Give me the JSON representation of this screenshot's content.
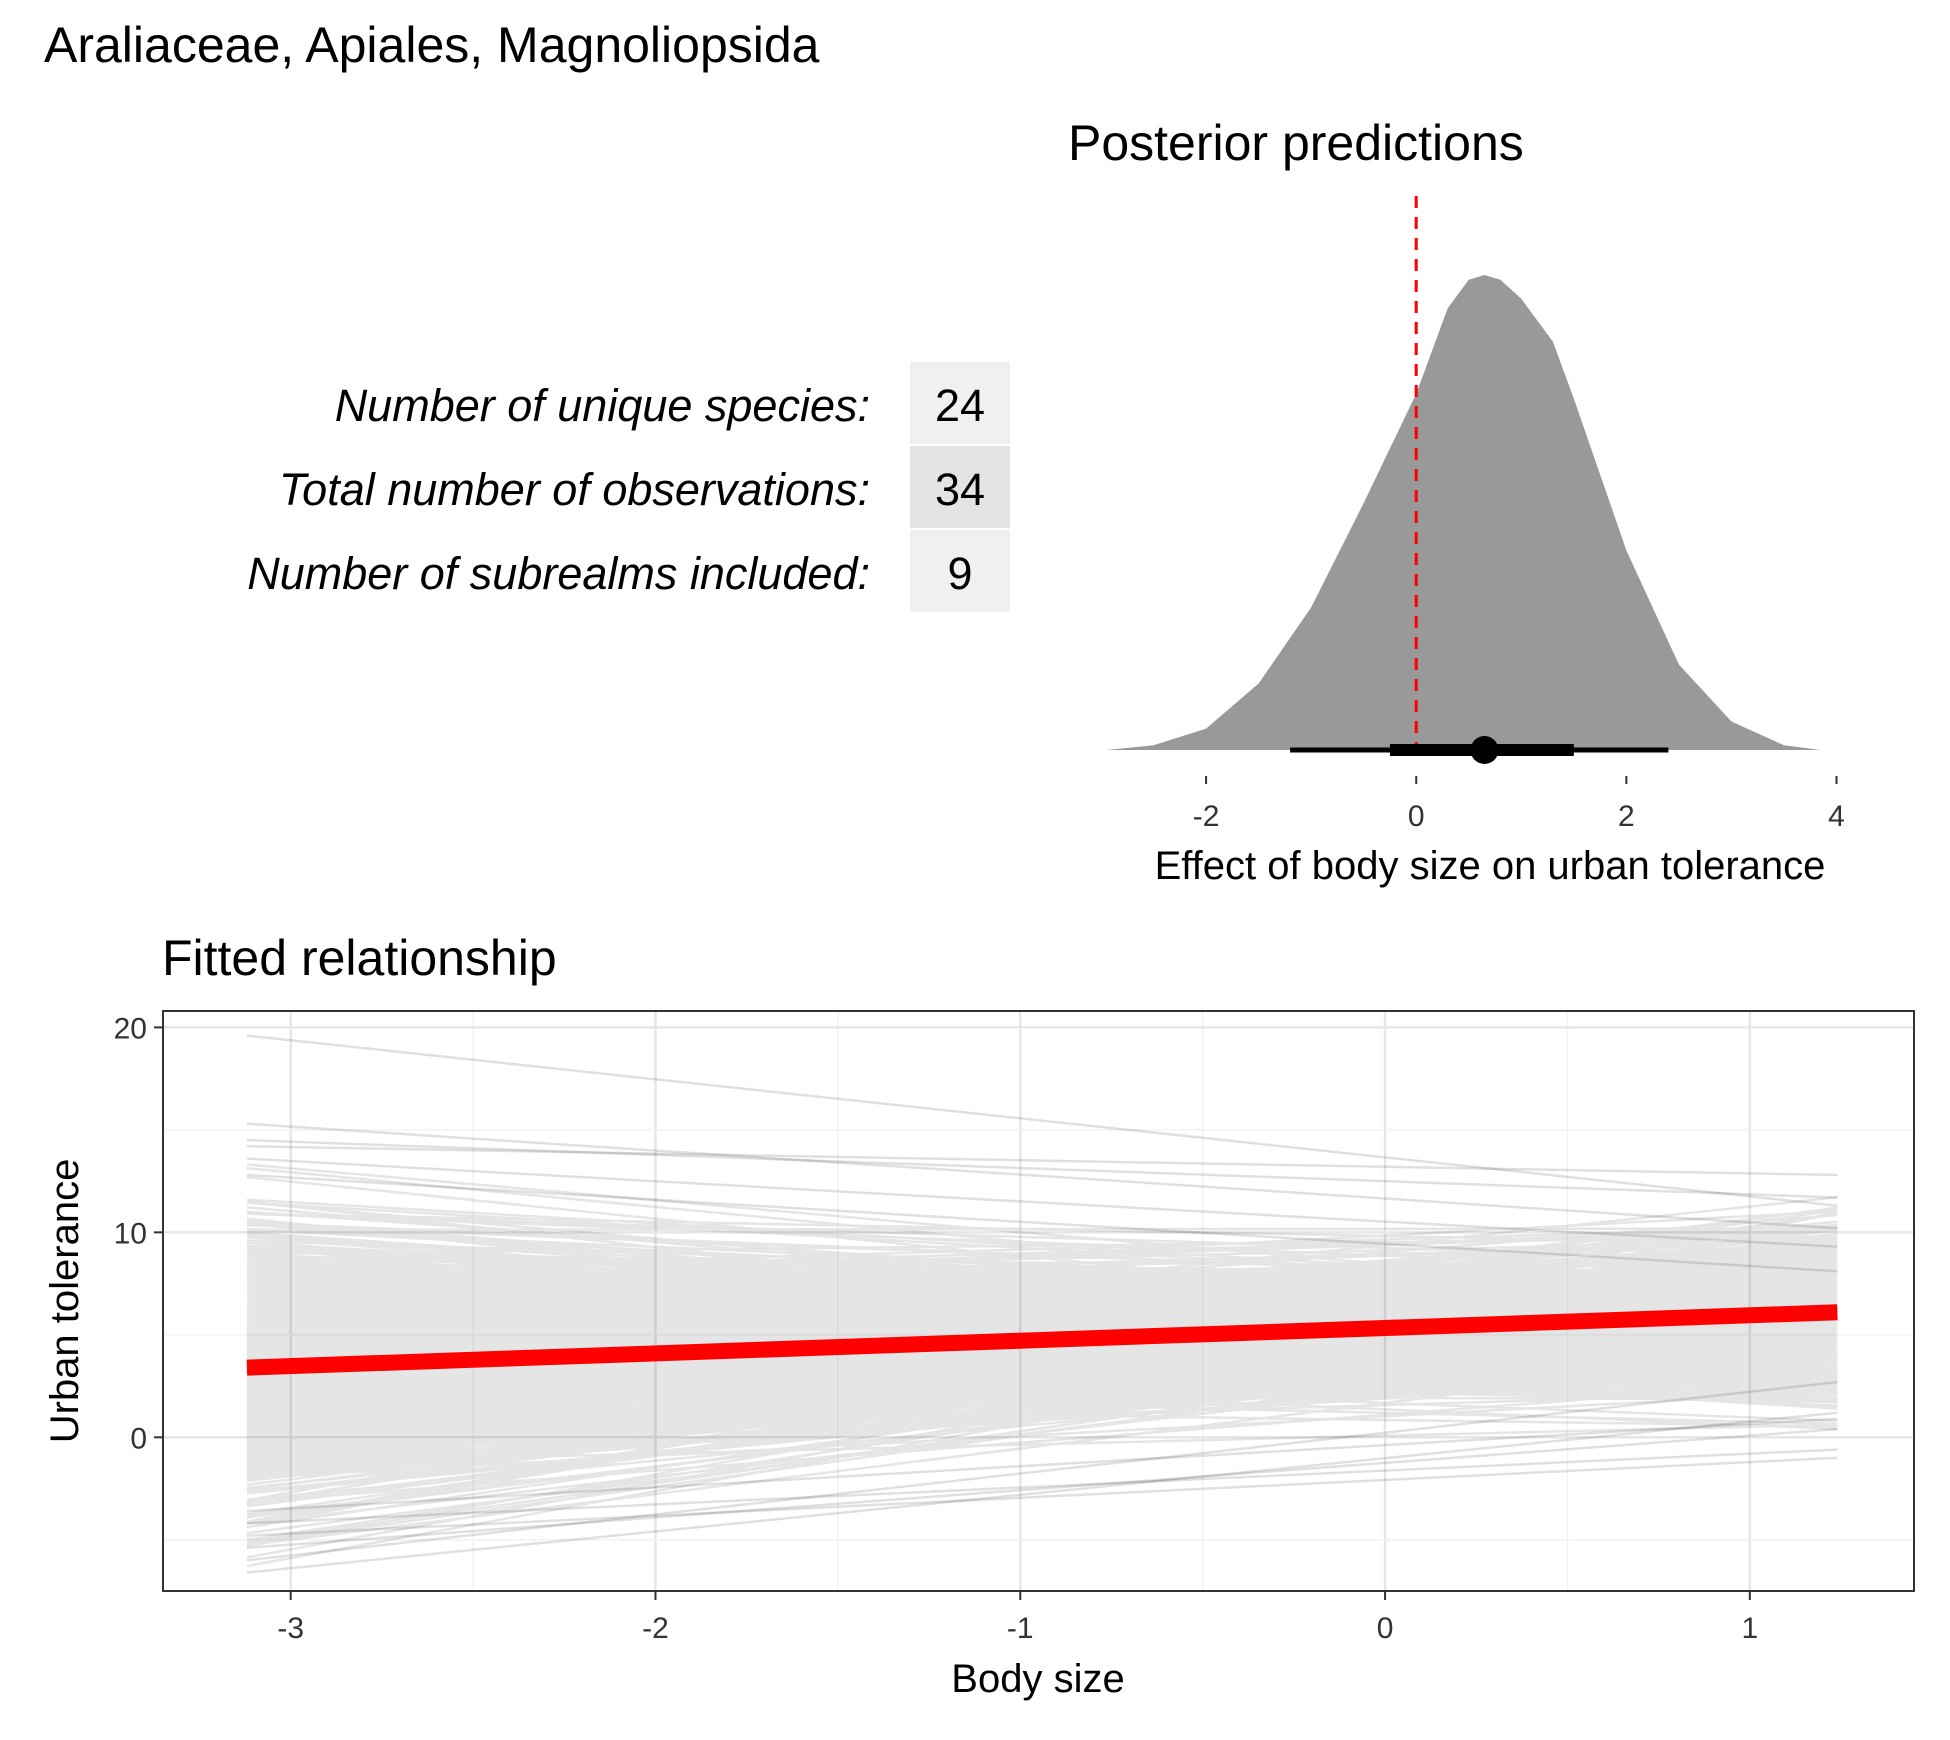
{
  "figure": {
    "title": "Araliaceae, Apiales, Magnoliopsida"
  },
  "stats_table": {
    "rows": [
      {
        "label": "Number of unique species:",
        "value": "24"
      },
      {
        "label": "Total number of observations:",
        "value": "34"
      },
      {
        "label": "Number of subrealms included:",
        "value": "9"
      }
    ]
  },
  "chart_data": [
    {
      "type": "area",
      "title": "Posterior predictions",
      "xlabel": "Effect of body size on urban tolerance",
      "ylabel": "",
      "xlim": [
        -2.8,
        3.9
      ],
      "x_ticks": [
        -2,
        0,
        2,
        4
      ],
      "grid": false,
      "density_points": [
        [
          -2.95,
          0.0
        ],
        [
          -2.5,
          0.01
        ],
        [
          -2.0,
          0.045
        ],
        [
          -1.5,
          0.14
        ],
        [
          -1.0,
          0.3
        ],
        [
          -0.5,
          0.52
        ],
        [
          0.0,
          0.75
        ],
        [
          0.3,
          0.93
        ],
        [
          0.5,
          0.99
        ],
        [
          0.65,
          1.0
        ],
        [
          0.8,
          0.99
        ],
        [
          1.0,
          0.95
        ],
        [
          1.3,
          0.86
        ],
        [
          1.5,
          0.74
        ],
        [
          2.0,
          0.42
        ],
        [
          2.5,
          0.18
        ],
        [
          3.0,
          0.06
        ],
        [
          3.5,
          0.01
        ],
        [
          3.85,
          0.0
        ]
      ],
      "reference_line": {
        "x": 0,
        "color": "#ff0000",
        "style": "dashed"
      },
      "point_interval": {
        "median": 0.65,
        "inner_interval": [
          -0.25,
          1.5
        ],
        "outer_interval": [
          -1.2,
          2.4
        ]
      },
      "fill_color": "#999999"
    },
    {
      "type": "line",
      "title": "Fitted relationship",
      "xlabel": "Body size",
      "ylabel": "Urban tolerance",
      "xlim": [
        -3.35,
        1.45
      ],
      "ylim": [
        -7.5,
        20.8
      ],
      "x_ticks": [
        -3,
        -2,
        -1,
        0,
        1
      ],
      "y_ticks": [
        0,
        10,
        20
      ],
      "grid": true,
      "x_range": [
        -3.12,
        1.24
      ],
      "fitted_line": {
        "start": [
          -3.12,
          3.4
        ],
        "end": [
          1.24,
          6.1
        ],
        "color": "#ff0000"
      },
      "posterior_draws": {
        "count": 1000,
        "color": "#000000",
        "highlighted": [
          {
            "x": [
              -3.12,
              1.24
            ],
            "y": [
              19.6,
              11.3
            ]
          },
          {
            "x": [
              -3.12,
              1.24
            ],
            "y": [
              15.3,
              10.2
            ]
          },
          {
            "x": [
              -3.12,
              1.24
            ],
            "y": [
              14.5,
              11.7
            ]
          },
          {
            "x": [
              -3.12,
              1.24
            ],
            "y": [
              14.2,
              12.8
            ]
          },
          {
            "x": [
              -3.12,
              1.24
            ],
            "y": [
              13.6,
              9.3
            ]
          },
          {
            "x": [
              -3.12,
              1.24
            ],
            "y": [
              12.8,
              8.1
            ]
          },
          {
            "x": [
              -3.12,
              1.24
            ],
            "y": [
              -6.6,
              1.2
            ]
          },
          {
            "x": [
              -3.12,
              1.24
            ],
            "y": [
              -6.0,
              2.7
            ]
          },
          {
            "x": [
              -3.12,
              1.24
            ],
            "y": [
              -5.4,
              0.4
            ]
          },
          {
            "x": [
              -3.12,
              1.24
            ],
            "y": [
              -4.8,
              -1.0
            ]
          },
          {
            "x": [
              -3.12,
              1.24
            ],
            "y": [
              -4.2,
              -0.6
            ]
          },
          {
            "x": [
              -3.12,
              1.24
            ],
            "y": [
              -3.6,
              0.9
            ]
          }
        ]
      }
    }
  ]
}
